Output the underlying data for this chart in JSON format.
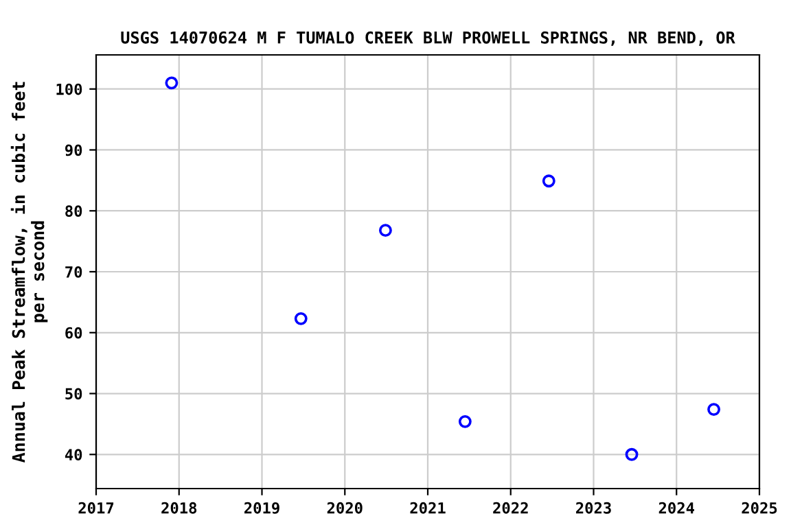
{
  "chart_data": {
    "type": "scatter",
    "title": "USGS 14070624 M F TUMALO CREEK BLW PROWELL SPRINGS, NR BEND, OR",
    "ylabel": "Annual Peak Streamflow, in cubic feet\nper second",
    "x": [
      2017.91,
      2019.47,
      2020.49,
      2021.45,
      2022.46,
      2023.46,
      2024.45
    ],
    "series": [
      {
        "color": "#0000ff",
        "values": [
          101,
          62.3,
          76.8,
          45.4,
          84.9,
          40.0,
          47.4
        ]
      }
    ],
    "xlim": [
      2017,
      2025
    ],
    "xticks": [
      2017,
      2018,
      2019,
      2020,
      2021,
      2022,
      2023,
      2024,
      2025
    ],
    "ylim": [
      34.4,
      105.6
    ],
    "yticks": [
      40,
      50,
      60,
      70,
      80,
      90,
      100
    ],
    "grid": true,
    "marker": "circle"
  }
}
